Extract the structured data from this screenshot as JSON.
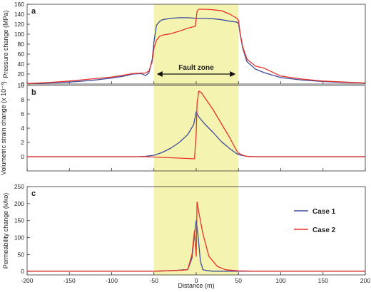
{
  "colors": {
    "case1": "#3b4d9c",
    "case2": "#e8322b",
    "fault_zone": "#f5f3b0",
    "axis": "#333333"
  },
  "xlabel": "Distance (m)",
  "fault_zone_label": "Fault zone",
  "legend": {
    "case1": "Case 1",
    "case2": "Case 2",
    "placement": "right of panel c"
  },
  "chart_data": [
    {
      "type": "line",
      "panel": "a",
      "ylabel": "Pressure change (MPa)",
      "xlim": [
        -200,
        200
      ],
      "ylim": [
        0,
        160
      ],
      "xticks": [
        -200,
        -150,
        -100,
        -50,
        0,
        50,
        100,
        150,
        200
      ],
      "yticks": [
        0,
        20,
        40,
        60,
        80,
        100,
        120,
        140,
        160
      ],
      "fault_zone": [
        -50,
        50
      ],
      "series": [
        {
          "name": "Case 1",
          "x": [
            -200,
            -175,
            -150,
            -125,
            -100,
            -85,
            -75,
            -65,
            -60,
            -56,
            -52,
            -50,
            -47,
            -43,
            -40,
            -30,
            -20,
            -10,
            0,
            10,
            20,
            30,
            40,
            45,
            48,
            50,
            52,
            55,
            60,
            70,
            80,
            90,
            100,
            125,
            150,
            175,
            200
          ],
          "y": [
            1,
            2,
            4,
            7,
            12,
            16,
            20,
            21,
            17,
            22,
            50,
            85,
            118,
            126,
            129,
            132,
            133,
            133,
            132,
            132,
            131,
            129,
            126,
            125,
            124,
            122,
            100,
            72,
            45,
            30,
            23,
            18,
            13,
            8,
            5,
            3,
            2
          ]
        },
        {
          "name": "Case 2",
          "x": [
            -200,
            -175,
            -150,
            -125,
            -100,
            -85,
            -75,
            -65,
            -60,
            -56,
            -52,
            -50,
            -47,
            -43,
            -40,
            -30,
            -20,
            -10,
            -1,
            1,
            3,
            10,
            20,
            30,
            40,
            45,
            48,
            50,
            52,
            55,
            60,
            70,
            80,
            90,
            100,
            125,
            150,
            175,
            200
          ],
          "y": [
            1,
            3,
            6,
            10,
            14,
            18,
            21,
            22,
            22,
            26,
            45,
            72,
            88,
            96,
            98,
            101,
            106,
            112,
            116,
            146,
            150,
            150,
            149,
            147,
            140,
            135,
            132,
            128,
            102,
            75,
            50,
            36,
            32,
            24,
            16,
            10,
            6,
            4,
            2
          ]
        }
      ]
    },
    {
      "type": "line",
      "panel": "b",
      "ylabel": "Volumetric strain change (x 10⁻³)",
      "xlim": [
        -200,
        200
      ],
      "ylim": [
        -2,
        10
      ],
      "xticks": [
        -200,
        -150,
        -100,
        -50,
        0,
        50,
        100,
        150,
        200
      ],
      "yticks": [
        0,
        2,
        4,
        6,
        8,
        10
      ],
      "fault_zone": [
        -50,
        50
      ],
      "series": [
        {
          "name": "Case 1",
          "x": [
            -200,
            -100,
            -70,
            -60,
            -50,
            -40,
            -30,
            -20,
            -10,
            -3,
            0,
            3,
            10,
            20,
            30,
            40,
            47,
            50,
            55,
            60,
            70,
            100,
            200
          ],
          "y": [
            0,
            0,
            0,
            0.05,
            0.2,
            0.6,
            1.2,
            2.0,
            3.1,
            4.5,
            6.3,
            5.6,
            4.6,
            3.4,
            2.1,
            1.1,
            0.5,
            0.3,
            0.15,
            0.05,
            0,
            0,
            0
          ]
        },
        {
          "name": "Case 2",
          "x": [
            -200,
            -100,
            -70,
            -60,
            -50,
            -40,
            -30,
            -20,
            -10,
            -2,
            0,
            1,
            3,
            6,
            10,
            20,
            30,
            40,
            47,
            50,
            55,
            60,
            70,
            100,
            200
          ],
          "y": [
            0,
            0,
            0,
            0,
            -0.05,
            -0.1,
            -0.15,
            -0.2,
            -0.25,
            -0.3,
            3.2,
            7.5,
            9.2,
            9.0,
            8.3,
            6.6,
            4.6,
            2.6,
            1.0,
            0.5,
            0.2,
            0.05,
            0,
            0,
            0
          ]
        }
      ]
    },
    {
      "type": "line",
      "panel": "c",
      "ylabel": "Permeability change (k/ko)",
      "xlim": [
        -200,
        200
      ],
      "ylim": [
        -10,
        250
      ],
      "xticks": [
        -200,
        -150,
        -100,
        -50,
        0,
        50,
        100,
        150,
        200
      ],
      "yticks": [
        0,
        50,
        100,
        150,
        200,
        250
      ],
      "fault_zone": [
        -50,
        50
      ],
      "series": [
        {
          "name": "Case 1",
          "x": [
            -200,
            -50,
            -25,
            -15,
            -10,
            -5,
            -2,
            0,
            2,
            5,
            8,
            12,
            20,
            50,
            200
          ],
          "y": [
            1,
            1,
            3,
            5,
            5,
            40,
            110,
            150,
            110,
            30,
            5,
            3,
            1,
            1,
            1
          ]
        },
        {
          "name": "Case 2",
          "x": [
            -200,
            -50,
            -25,
            -15,
            -10,
            -5,
            -2,
            0,
            1,
            3,
            8,
            15,
            25,
            35,
            50,
            70,
            200
          ],
          "y": [
            1,
            1,
            3,
            4,
            6,
            50,
            120,
            45,
            205,
            175,
            110,
            45,
            15,
            5,
            2,
            1,
            1
          ]
        }
      ]
    }
  ]
}
